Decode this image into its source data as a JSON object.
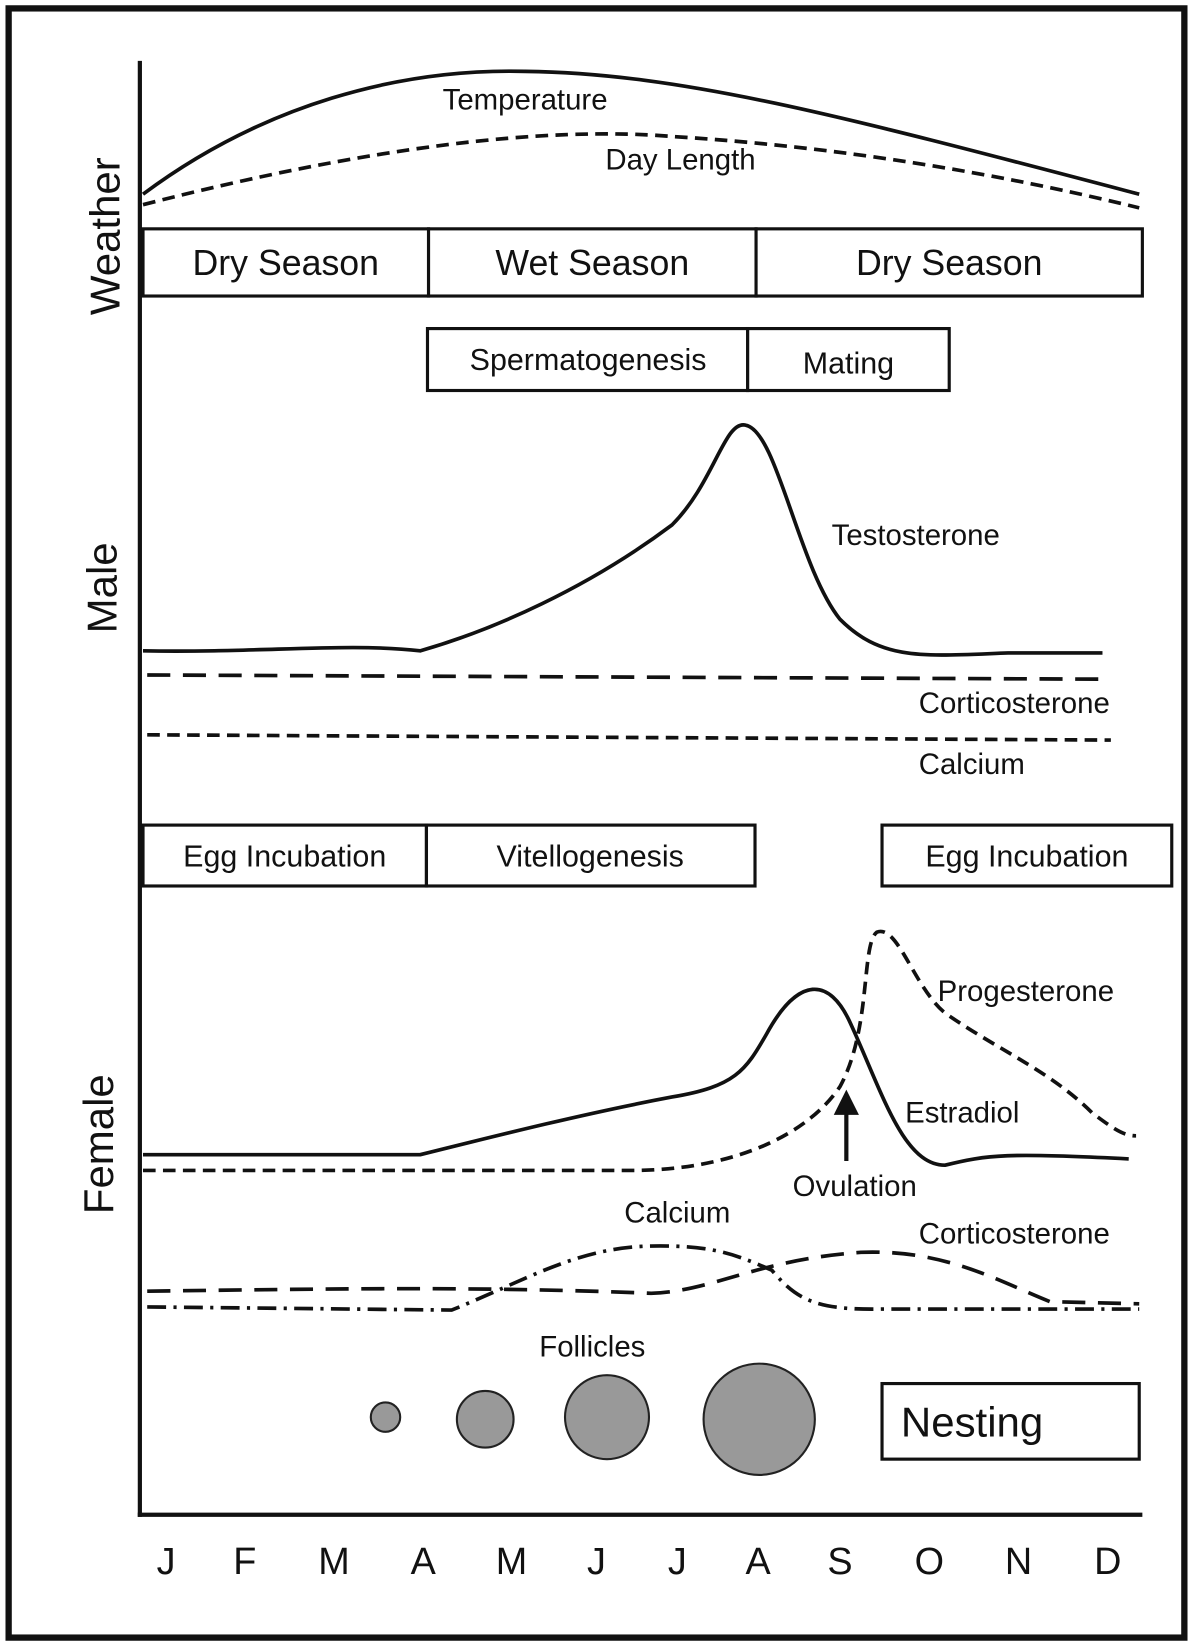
{
  "sections": [
    "Weather",
    "Male",
    "Female"
  ],
  "weather": {
    "curves": [
      "Temperature",
      "Day Length"
    ],
    "seasons": [
      "Dry Season",
      "Wet Season",
      "Dry Season"
    ]
  },
  "male": {
    "phases": [
      "Spermatogenesis",
      "Mating"
    ],
    "curves": [
      "Testosterone",
      "Corticosterone",
      "Calcium"
    ]
  },
  "female": {
    "phases": [
      "Egg Incubation",
      "Vitellogenesis",
      "Egg Incubation"
    ],
    "curves": [
      "Progesterone",
      "Estradiol",
      "Calcium",
      "Corticosterone"
    ],
    "annotation": "Ovulation",
    "follicles": "Follicles",
    "nesting": "Nesting"
  },
  "months": [
    "J",
    "F",
    "M",
    "A",
    "M",
    "J",
    "J",
    "A",
    "S",
    "O",
    "N",
    "D"
  ]
}
